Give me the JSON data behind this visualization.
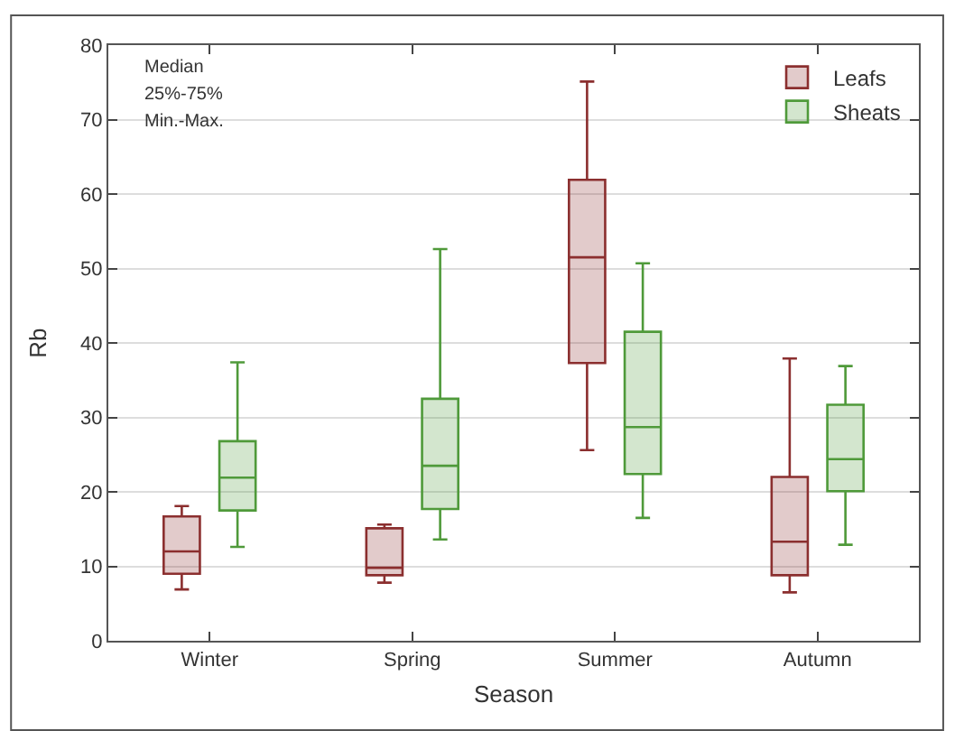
{
  "chart_data": {
    "type": "box",
    "xlabel": "Season",
    "ylabel": "Rb",
    "categories": [
      "Winter",
      "Spring",
      "Summer",
      "Autumn"
    ],
    "series": [
      {
        "name": "Leafs",
        "color": "#8b2f2f",
        "boxes": [
          {
            "low": 6.9,
            "q1": 9.0,
            "median": 12.0,
            "q3": 16.7,
            "high": 18.1
          },
          {
            "low": 7.8,
            "q1": 8.8,
            "median": 9.8,
            "q3": 15.1,
            "high": 15.6
          },
          {
            "low": 25.6,
            "q1": 37.3,
            "median": 51.5,
            "q3": 61.9,
            "high": 75.1
          },
          {
            "low": 6.5,
            "q1": 8.8,
            "median": 13.3,
            "q3": 22.0,
            "high": 37.9
          }
        ]
      },
      {
        "name": "Sheats",
        "color": "#4f9a3a",
        "boxes": [
          {
            "low": 12.6,
            "q1": 17.5,
            "median": 21.9,
            "q3": 26.8,
            "high": 37.4
          },
          {
            "low": 13.6,
            "q1": 17.7,
            "median": 23.5,
            "q3": 32.5,
            "high": 52.6
          },
          {
            "low": 16.5,
            "q1": 22.4,
            "median": 28.7,
            "q3": 41.5,
            "high": 50.7
          },
          {
            "low": 12.9,
            "q1": 20.1,
            "median": 24.4,
            "q3": 31.7,
            "high": 36.9
          }
        ]
      }
    ],
    "ylim": [
      0,
      80
    ],
    "yticks": [
      0,
      10,
      20,
      30,
      40,
      50,
      60,
      70,
      80
    ],
    "grid": "y",
    "legend": "top right",
    "annotations": [
      "Median",
      "25%-75%",
      "Min.-Max."
    ]
  }
}
